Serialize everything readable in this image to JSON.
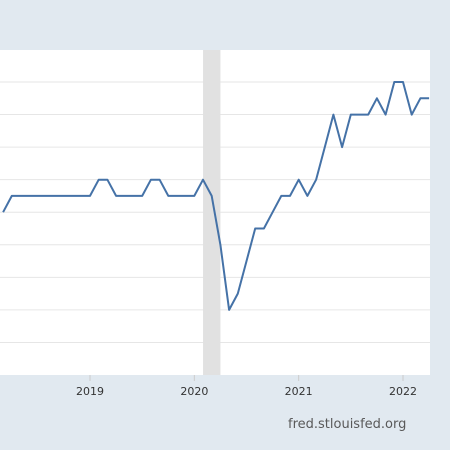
{
  "source_credit": "fred.stlouisfed.org",
  "colors": {
    "background": "#e1e9f0",
    "plot_background": "#ffffff",
    "gridline": "#e6e6e6",
    "recession_shade": "#e1e1e1",
    "line": "#4572a7",
    "tick_label": "#333333"
  },
  "chart_data": {
    "type": "line",
    "title": "",
    "xlabel": "",
    "ylabel": "",
    "x_tick_labels": [
      "2019",
      "2020",
      "2021",
      "2022"
    ],
    "x_tick_values": [
      "2019-01",
      "2020-01",
      "2021-01",
      "2022-01"
    ],
    "ylim": [
      0,
      9
    ],
    "y_tick_labels": [],
    "grid": true,
    "recession": {
      "start": "2020-02",
      "end": "2020-04"
    },
    "series": [
      {
        "x": [
          "2018-03",
          "2018-04",
          "2018-05",
          "2018-06",
          "2018-07",
          "2018-08",
          "2018-09",
          "2018-10",
          "2018-11",
          "2018-12",
          "2019-01",
          "2019-02",
          "2019-03",
          "2019-04",
          "2019-05",
          "2019-06",
          "2019-07",
          "2019-08",
          "2019-09",
          "2019-10",
          "2019-11",
          "2019-12",
          "2020-01",
          "2020-02",
          "2020-03",
          "2020-04",
          "2020-05",
          "2020-06",
          "2020-07",
          "2020-08",
          "2020-09",
          "2020-10",
          "2020-11",
          "2020-12",
          "2021-01",
          "2021-02",
          "2021-03",
          "2021-04",
          "2021-05",
          "2021-06",
          "2021-07",
          "2021-08",
          "2021-09",
          "2021-10",
          "2021-11",
          "2021-12",
          "2022-01",
          "2022-02",
          "2022-03",
          "2022-04"
        ],
        "values": [
          5.0,
          5.5,
          5.5,
          5.5,
          5.5,
          5.5,
          5.5,
          5.5,
          5.5,
          5.5,
          5.5,
          6.0,
          6.0,
          5.5,
          5.5,
          5.5,
          5.5,
          6.0,
          6.0,
          5.5,
          5.5,
          5.5,
          5.5,
          6.0,
          5.5,
          4.0,
          2.0,
          2.5,
          3.5,
          4.5,
          4.5,
          5.0,
          5.5,
          5.5,
          6.0,
          5.5,
          6.0,
          7.0,
          8.0,
          7.0,
          8.0,
          8.0,
          8.0,
          8.5,
          8.0,
          9.0,
          9.0,
          8.0,
          8.5,
          8.5
        ]
      }
    ]
  }
}
